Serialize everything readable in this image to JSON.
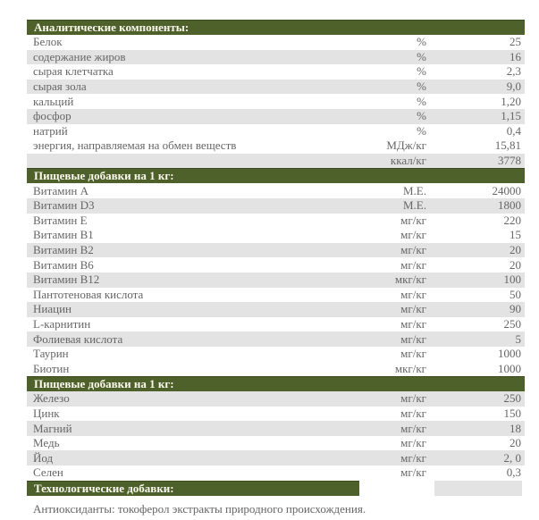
{
  "colors": {
    "header_bg": "#4e612b",
    "header_text": "#fbf9ee",
    "shaded_row_bg": "#e3e3e3",
    "text": "#666666",
    "page_bg": "#ffffff"
  },
  "sections": [
    {
      "title": "Аналитические компоненты:",
      "rows": [
        {
          "name": "Белок",
          "unit": "%",
          "value": "25",
          "shaded": false
        },
        {
          "name": "содержание жиров",
          "unit": "%",
          "value": "16",
          "shaded": true
        },
        {
          "name": "сырая клетчатка",
          "unit": "%",
          "value": "2,3",
          "shaded": false
        },
        {
          "name": "сырая зола",
          "unit": "%",
          "value": "9,0",
          "shaded": true
        },
        {
          "name": "кальций",
          "unit": "%",
          "value": "1,20",
          "shaded": false
        },
        {
          "name": "фосфор",
          "unit": "%",
          "value": "1,15",
          "shaded": true
        },
        {
          "name": "натрий",
          "unit": "%",
          "value": "0,4",
          "shaded": false
        },
        {
          "name": "энергия, направляемая на обмен веществ",
          "unit": "МДж/кг",
          "value": "15,81",
          "shaded": false
        },
        {
          "name": "",
          "unit": "ккал/кг",
          "value": "3778",
          "shaded": true
        }
      ]
    },
    {
      "title": "Пищевые добавки на 1 кг:",
      "rows": [
        {
          "name": "Витамин A",
          "unit": "М.Е.",
          "value": "24000",
          "shaded": false
        },
        {
          "name": "Витамин D3",
          "unit": "М.Е.",
          "value": "1800",
          "shaded": true
        },
        {
          "name": "Витамин E",
          "unit": "мг/кг",
          "value": "220",
          "shaded": false
        },
        {
          "name": "Витамин B1",
          "unit": "мг/кг",
          "value": "15",
          "shaded": false
        },
        {
          "name": "Витамин B2",
          "unit": "мг/кг",
          "value": "20",
          "shaded": true
        },
        {
          "name": "Витамин B6",
          "unit": "мг/кг",
          "value": "20",
          "shaded": false
        },
        {
          "name": "Витамин B12",
          "unit": "мкг/кг",
          "value": "100",
          "shaded": true
        },
        {
          "name": "Пантотеновая кислота",
          "unit": "мг/кг",
          "value": "50",
          "shaded": false
        },
        {
          "name": "Ниацин",
          "unit": "мг/кг",
          "value": "90",
          "shaded": true
        },
        {
          "name": "L-карнитин",
          "unit": "мг/кг",
          "value": "250",
          "shaded": false
        },
        {
          "name": "Фолиевая кислота",
          "unit": "мг/кг",
          "value": "5",
          "shaded": true
        },
        {
          "name": "Таурин",
          "unit": "мг/кг",
          "value": "1000",
          "shaded": false
        },
        {
          "name": "Биотин",
          "unit": "мкг/кг",
          "value": "1000",
          "shaded": false
        }
      ]
    },
    {
      "title": "Пищевые добавки на 1 кг:",
      "rows": [
        {
          "name": "Железо",
          "unit": "мг/кг",
          "value": "250",
          "shaded": true
        },
        {
          "name": "Цинк",
          "unit": "мг/кг",
          "value": "150",
          "shaded": false
        },
        {
          "name": "Магний",
          "unit": "мг/кг",
          "value": "18",
          "shaded": true
        },
        {
          "name": "Медь",
          "unit": "мг/кг",
          "value": "20",
          "shaded": false
        },
        {
          "name": "Йод",
          "unit": "мг/кг",
          "value": "2, 0",
          "shaded": true
        },
        {
          "name": "Селен",
          "unit": "мг/кг",
          "value": "0,3",
          "shaded": false
        }
      ]
    }
  ],
  "tech_section": {
    "title": "Технологические добавки:",
    "note": "Антиоксиданты: токоферол экстракты природного происхождения."
  }
}
